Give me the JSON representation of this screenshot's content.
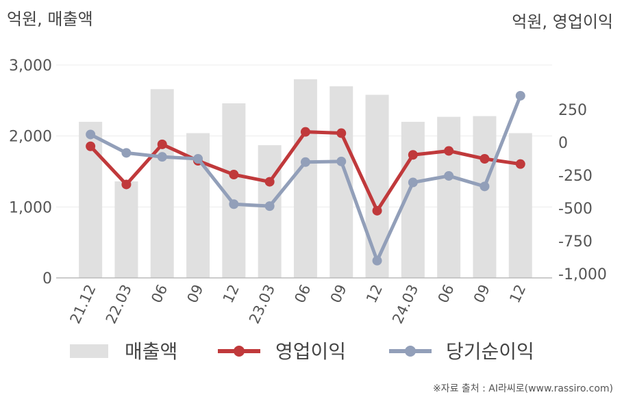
{
  "chart_data": {
    "type": "bar",
    "left_unit_label": "억원, 매출액",
    "right_unit_label": "억원, 영업이익",
    "categories": [
      "21.12",
      "22.03",
      "06",
      "09",
      "12",
      "23.03",
      "06",
      "09",
      "12",
      "24.03",
      "06",
      "09",
      "12"
    ],
    "left_axis": {
      "ylim": [
        0,
        3000
      ],
      "ticks": [
        "0",
        "1,000",
        "2,000",
        "3,000"
      ],
      "tick_values": [
        0,
        1000,
        2000,
        3000
      ]
    },
    "right_axis": {
      "ylim": [
        -1000,
        500
      ],
      "ticks": [
        "-1,000",
        "-750",
        "-500",
        "-250",
        "0",
        "250"
      ],
      "tick_values": [
        -1000,
        -750,
        -500,
        -250,
        0,
        250
      ]
    },
    "series": [
      {
        "name": "매출액",
        "type": "bar",
        "axis": "left",
        "color": "#e0e0e0",
        "values": [
          2200,
          1360,
          2660,
          2040,
          2460,
          1870,
          2800,
          2700,
          2580,
          2200,
          2270,
          2280,
          2040
        ]
      },
      {
        "name": "영업이익",
        "type": "line",
        "axis": "right",
        "color": "#c0393b",
        "values": [
          -30,
          -320,
          -15,
          -140,
          -245,
          -300,
          80,
          70,
          -520,
          -95,
          -65,
          -125,
          -165
        ]
      },
      {
        "name": "당기순이익",
        "type": "line",
        "axis": "right",
        "color": "#929fb9",
        "values": [
          60,
          -80,
          -110,
          -125,
          -470,
          -485,
          -150,
          -145,
          -900,
          -305,
          -255,
          -335,
          355
        ]
      }
    ],
    "grid": true,
    "legend": "bottom"
  },
  "source": "※자료 출처 : AI라씨로(www.rassiro.com)"
}
